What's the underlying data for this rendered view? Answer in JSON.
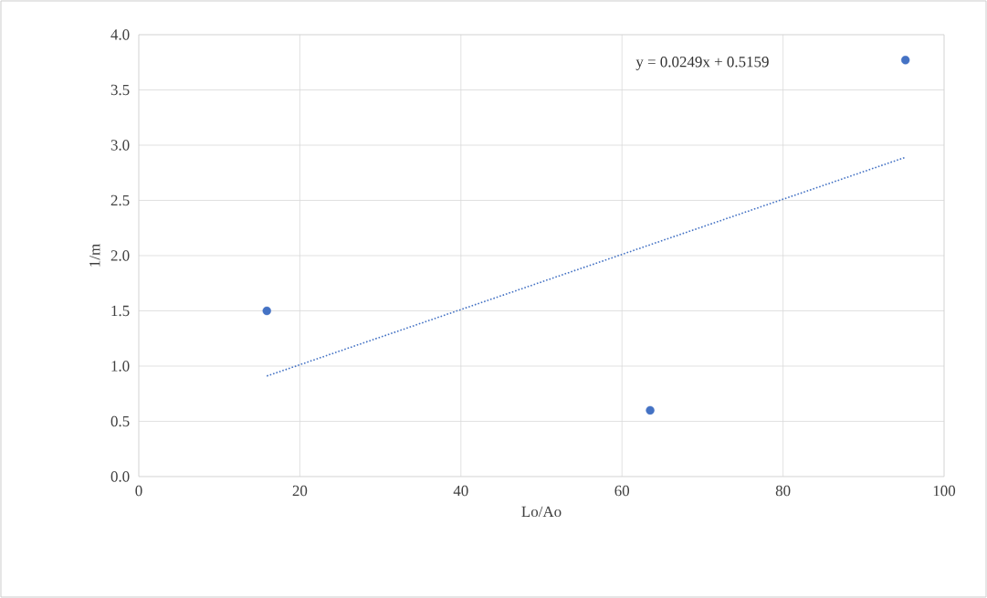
{
  "chart_data": {
    "type": "scatter",
    "xlabel": "Lo/Ao",
    "ylabel": "1/m",
    "series": [
      {
        "color": "#4472c4",
        "marker": "circle",
        "x": [
          15.9,
          63.5,
          95.2
        ],
        "values": [
          1.5,
          0.6,
          3.77
        ]
      },
      {
        "type": "line",
        "color": "#4472c4",
        "marker": "none",
        "line_style": "dotted",
        "x": [
          15.9,
          95.2
        ],
        "values": [
          0.91,
          2.89
        ]
      }
    ],
    "grid": true,
    "xlim": [
      0,
      100
    ],
    "xticks": [
      0,
      20,
      40,
      60,
      80,
      100
    ],
    "ylim": [
      0,
      4
    ],
    "yticks": [
      {
        "value": 0,
        "label": "0.0"
      },
      {
        "value": 0.5,
        "label": "0.5"
      },
      {
        "value": 1,
        "label": "1.0"
      },
      {
        "value": 1.5,
        "label": "1.5"
      },
      {
        "value": 2,
        "label": "2.0"
      },
      {
        "value": 2.5,
        "label": "2.5"
      },
      {
        "value": 3,
        "label": "3.0"
      },
      {
        "value": 3.5,
        "label": "3.5"
      },
      {
        "value": 4,
        "label": "4.0"
      }
    ],
    "annotations": [
      "y = 0.0249x   + 0.5159"
    ]
  }
}
